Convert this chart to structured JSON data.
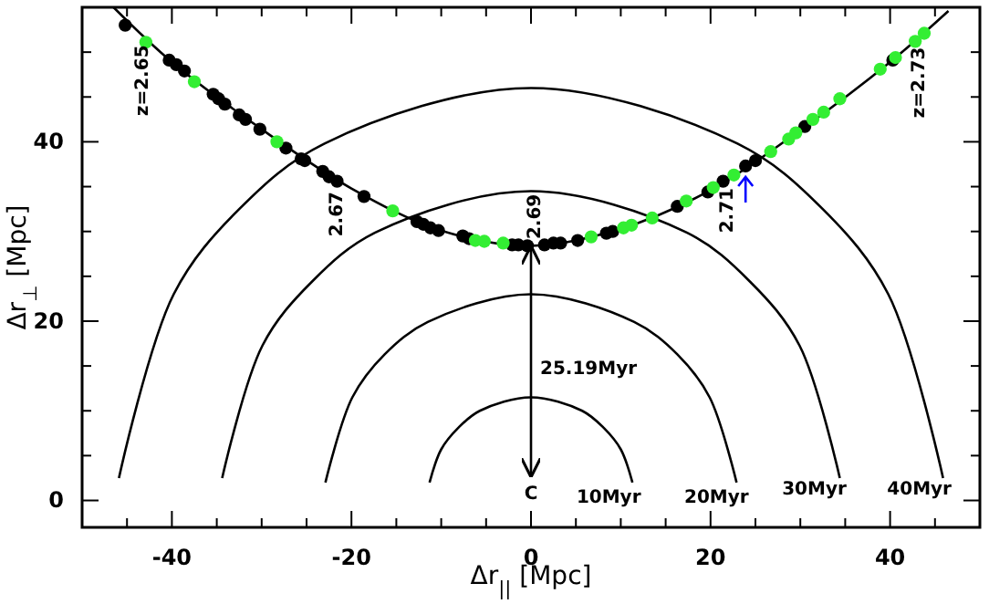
{
  "chart_data": {
    "type": "scatter",
    "xlabel": "Δr$_{||}$  [Mpc]",
    "ylabel": "Δr$_{⊥}$ [Mpc]",
    "xlim": [
      -50,
      50
    ],
    "ylim": [
      -3,
      55
    ],
    "xticks": [
      {
        "value": -45,
        "label": null
      },
      -40,
      {
        "value": -35,
        "label": null
      },
      {
        "value": -30,
        "label": null
      },
      {
        "value": -25,
        "label": null
      },
      -20,
      {
        "value": -15,
        "label": null
      },
      {
        "value": -10,
        "label": null
      },
      {
        "value": -5,
        "label": null
      },
      0,
      {
        "value": 5,
        "label": null
      },
      {
        "value": 10,
        "label": null
      },
      {
        "value": 15,
        "label": null
      },
      20,
      {
        "value": 25,
        "label": null
      },
      {
        "value": 30,
        "label": null
      },
      {
        "value": 35,
        "label": null
      },
      40,
      {
        "value": 45,
        "label": null
      }
    ],
    "yticks": [
      0,
      {
        "value": 5,
        "label": null
      },
      {
        "value": 10,
        "label": null
      },
      {
        "value": 15,
        "label": null
      },
      20,
      {
        "value": 25,
        "label": null
      },
      {
        "value": 30,
        "label": null
      },
      {
        "value": 35,
        "label": null
      },
      40,
      {
        "value": 45,
        "label": null
      },
      {
        "value": 50,
        "label": null
      }
    ],
    "grid": false,
    "series": [
      {
        "type": "line",
        "color": "#000000",
        "marker": "none",
        "x": [
          -46.5,
          -40,
          -30,
          -20,
          -10,
          0,
          10,
          20,
          30,
          40,
          46.5
        ],
        "values": [
          55,
          48.9,
          41.4,
          34.8,
          30.1,
          28.4,
          30.3,
          34.6,
          41.3,
          48.9,
          54.6
        ]
      },
      {
        "type": "line",
        "color": "#000000",
        "marker": "none",
        "x": [
          11.3,
          10,
          8.1,
          5.7,
          0,
          -5.7,
          -8.1,
          -10,
          -11.3
        ],
        "values": [
          2,
          5.7,
          8.1,
          10,
          11.5,
          10,
          8.1,
          5.7,
          2
        ]
      },
      {
        "type": "line",
        "color": "#000000",
        "marker": "none",
        "x": [
          22.9,
          19.9,
          16.3,
          11.5,
          0,
          -11.5,
          -16.3,
          -19.9,
          -22.9
        ],
        "values": [
          2,
          11.5,
          16.3,
          19.9,
          23,
          19.9,
          16.3,
          11.5,
          2
        ]
      },
      {
        "type": "line",
        "color": "#000000",
        "marker": "none",
        "x": [
          34.4,
          29.9,
          24.4,
          17.3,
          0,
          -17.3,
          -24.4,
          -29.9,
          -34.4
        ],
        "values": [
          2.5,
          17.3,
          24.4,
          29.9,
          34.5,
          29.9,
          24.4,
          17.3,
          2.5
        ]
      },
      {
        "type": "line",
        "color": "#000000",
        "marker": "none",
        "x": [
          45.9,
          39.8,
          32.5,
          23,
          0,
          -23,
          -32.5,
          -39.8,
          -45.9
        ],
        "values": [
          2.5,
          23,
          32.5,
          39.8,
          46,
          39.8,
          32.5,
          23,
          2.5
        ]
      },
      {
        "type": "line",
        "color": "#000000",
        "marker": "none",
        "x": [
          0,
          0
        ],
        "values": [
          2.6,
          28.4
        ]
      },
      {
        "type": "scatter",
        "color": "#000000",
        "marker": "circle",
        "x": [
          -45.2,
          -40.3,
          -39.5,
          -38.6,
          -35.4,
          -34.8,
          -34.1,
          -32.5,
          -31.8,
          -30.2,
          -27.3,
          -25.6,
          -25.2,
          -23.2,
          -22.5,
          -21.6,
          -18.6,
          -12.7,
          -12.0,
          -11.2,
          -10.3,
          -7.6,
          -6.9,
          -2.1,
          -1.4,
          -0.4,
          1.5,
          2.5,
          3.3,
          5.2,
          8.4,
          9.1,
          16.3,
          19.7,
          21.4,
          23.9,
          25.0,
          30.5,
          40.3
        ],
        "values": [
          53.0,
          49.1,
          48.6,
          47.9,
          45.3,
          44.8,
          44.2,
          43.0,
          42.5,
          41.4,
          39.3,
          38.1,
          37.9,
          36.7,
          36.1,
          35.6,
          33.9,
          31.1,
          30.8,
          30.4,
          30.1,
          29.5,
          29.2,
          28.5,
          28.5,
          28.4,
          28.5,
          28.7,
          28.7,
          29.0,
          29.8,
          30.0,
          32.8,
          34.4,
          35.6,
          37.3,
          37.9,
          41.7,
          49.1
        ]
      },
      {
        "type": "scatter",
        "color": "#33ee33",
        "marker": "circle",
        "x": [
          -42.9,
          -37.5,
          -28.3,
          -15.4,
          -6.2,
          -5.2,
          -3.1,
          6.7,
          10.3,
          11.2,
          13.5,
          17.3,
          20.3,
          22.6,
          26.7,
          28.7,
          29.5,
          31.4,
          32.6,
          34.4,
          38.9,
          40.6,
          42.8,
          43.8
        ],
        "values": [
          51.1,
          46.7,
          40.0,
          32.3,
          29.0,
          28.9,
          28.7,
          29.4,
          30.4,
          30.7,
          31.5,
          33.4,
          34.9,
          36.3,
          38.9,
          40.3,
          41.0,
          42.5,
          43.3,
          44.8,
          48.1,
          49.4,
          51.2,
          52.1
        ]
      }
    ],
    "annotations": [
      {
        "text": "z=2.65",
        "x": -42.9,
        "y": 51.1
      },
      {
        "text": "2.67",
        "x": -21.6,
        "y": 35.6
      },
      {
        "text": "2.69",
        "x": 0,
        "y": 28.4
      },
      {
        "text": "2.71",
        "x": 21.4,
        "y": 35.6
      },
      {
        "text": "z=2.73",
        "x": 43.8,
        "y": 52.1
      },
      {
        "text": "25.19Myr",
        "x": 0,
        "y": 14.7
      },
      {
        "text": "C",
        "x": 0,
        "y": 2.6
      },
      {
        "text": "10Myr",
        "x": 11.3,
        "y": 2
      },
      {
        "text": "20Myr",
        "x": 22.9,
        "y": 2
      },
      {
        "text": "30Myr",
        "x": 34.4,
        "y": 2.5
      },
      {
        "text": "40Myr",
        "x": 45.9,
        "y": 2.5
      }
    ]
  }
}
